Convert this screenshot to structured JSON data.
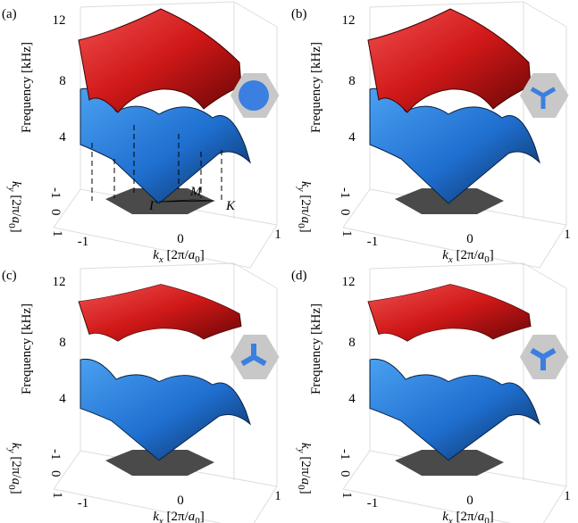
{
  "panels": [
    {
      "label": "(a)",
      "z_axis": {
        "label": "Frequency [kHz]",
        "ticks": [
          "4",
          "8",
          "12"
        ]
      },
      "y_axis": {
        "label": [
          "k",
          "y",
          " [2π/",
          "a",
          "0",
          "]"
        ],
        "ticks": [
          "-1",
          "0",
          "1"
        ]
      },
      "x_axis": {
        "label": [
          "k",
          "x",
          " [2π/",
          "a",
          "0",
          "]"
        ],
        "ticks": [
          "-1",
          "0",
          "1"
        ]
      },
      "annotations": [
        "Γ",
        "M",
        "K"
      ]
    },
    {
      "label": "(b)",
      "z_axis": {
        "label": "Frequency [kHz]",
        "ticks": [
          "4",
          "8",
          "12"
        ]
      },
      "y_axis": {
        "label": [
          "k",
          "y",
          " [2π/",
          "a",
          "0",
          "]"
        ],
        "ticks": [
          "-1",
          "0",
          "1"
        ]
      },
      "x_axis": {
        "label": [
          "k",
          "x",
          " [2π/",
          "a",
          "0",
          "]"
        ],
        "ticks": [
          "-1",
          "0",
          "1"
        ]
      }
    },
    {
      "label": "(c)",
      "z_axis": {
        "label": "Frequency [kHz]",
        "ticks": [
          "4",
          "8",
          "12"
        ]
      },
      "y_axis": {
        "label": [
          "k",
          "y",
          " [2π/",
          "a",
          "0",
          "]"
        ],
        "ticks": [
          "-1",
          "0",
          "1"
        ]
      },
      "x_axis": {
        "label": [
          "k",
          "x",
          " [2π/",
          "a",
          "0",
          "]"
        ],
        "ticks": [
          "-1",
          "0",
          "1"
        ]
      }
    },
    {
      "label": "(d)",
      "z_axis": {
        "label": "Frequency [kHz]",
        "ticks": [
          "4",
          "8",
          "12"
        ]
      },
      "y_axis": {
        "label": [
          "k",
          "y",
          " [2π/",
          "a",
          "0",
          "]"
        ],
        "ticks": [
          "-1",
          "0",
          "1"
        ]
      },
      "x_axis": {
        "label": [
          "k",
          "x",
          " [2π/",
          "a",
          "0",
          "]"
        ],
        "ticks": [
          "-1",
          "0",
          "1"
        ]
      }
    }
  ]
}
